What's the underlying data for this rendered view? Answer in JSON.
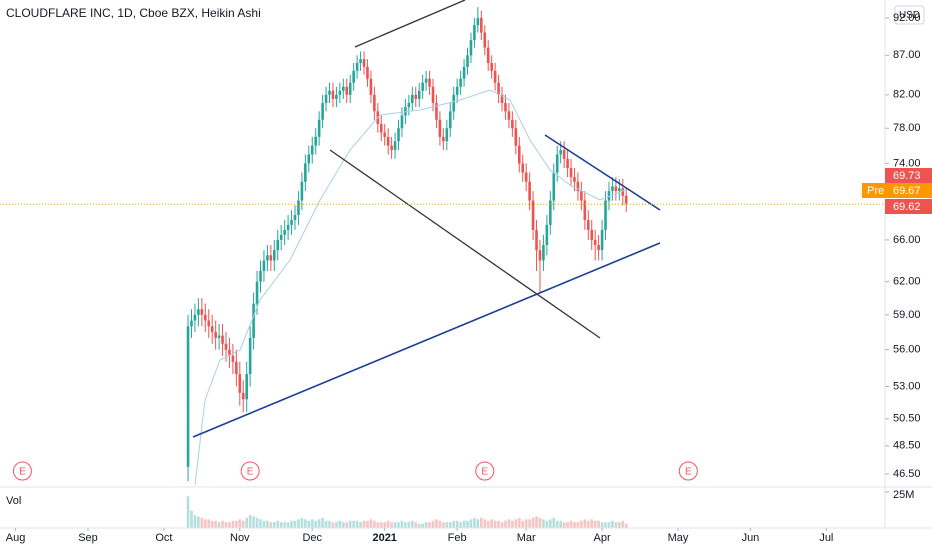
{
  "chart_data": {
    "type": "candlestick",
    "title": "CLOUDFLARE INC, 1D, Cboe BZX, Heikin Ashi",
    "currency": "USD",
    "volume_label": "Vol",
    "log_scale": true,
    "up_color": "#26a69a",
    "down_color": "#ef5350",
    "ylim": [
      45.74,
      94.5
    ],
    "yticks": [
      {
        "value": 92,
        "label": "92.00"
      },
      {
        "value": 87,
        "label": "87.00"
      },
      {
        "value": 82,
        "label": "82.00"
      },
      {
        "value": 78,
        "label": "78.00"
      },
      {
        "value": 74,
        "label": "74.00"
      },
      {
        "value": 66,
        "label": "66.00"
      },
      {
        "value": 62,
        "label": "62.00"
      },
      {
        "value": 59,
        "label": "59.00"
      },
      {
        "value": 56,
        "label": "56.00"
      },
      {
        "value": 53,
        "label": "53.00"
      },
      {
        "value": 50.5,
        "label": "50.50"
      },
      {
        "value": 48.5,
        "label": "48.50"
      },
      {
        "value": 46.5,
        "label": "46.50"
      }
    ],
    "xlim": [
      -54.5,
      202
    ],
    "xticks": [
      {
        "value": -50,
        "label": "Aug"
      },
      {
        "value": -29,
        "label": "Sep"
      },
      {
        "value": -7,
        "label": "Oct"
      },
      {
        "value": 15,
        "label": "Nov"
      },
      {
        "value": 36,
        "label": "Dec"
      },
      {
        "value": 57,
        "label": "2021"
      },
      {
        "value": 78,
        "label": "Feb"
      },
      {
        "value": 98,
        "label": "Mar"
      },
      {
        "value": 120,
        "label": "Apr"
      },
      {
        "value": 142,
        "label": "May"
      },
      {
        "value": 163,
        "label": "Jun"
      },
      {
        "value": 185,
        "label": "Jul"
      }
    ],
    "open": [
      47,
      58,
      58.5,
      59,
      59.5,
      59,
      58.5,
      58,
      57.5,
      57,
      57.2,
      56.5,
      56,
      55.5,
      55,
      54,
      52.5,
      52,
      54,
      57,
      60,
      62,
      63,
      64,
      64.5,
      64,
      65,
      66,
      66.5,
      67,
      67.5,
      68,
      68.5,
      70,
      72,
      74,
      75,
      76,
      77,
      79,
      81,
      82,
      82.5,
      81.5,
      82,
      82.5,
      83,
      82,
      83.5,
      85,
      86,
      86.5,
      85.5,
      84,
      82,
      80,
      78.5,
      77.5,
      77,
      76,
      75.5,
      76.5,
      78,
      79.5,
      80.5,
      81,
      82,
      81.5,
      82.5,
      83.5,
      84,
      83,
      81,
      79,
      77,
      76.5,
      78,
      80,
      82,
      83,
      84,
      85.5,
      87,
      89,
      91,
      92,
      90,
      88,
      86,
      85,
      83.5,
      82,
      81,
      80,
      79,
      78,
      76,
      74,
      73,
      72,
      70,
      67,
      65,
      64,
      65.5,
      67.5,
      70,
      73,
      75,
      75.5,
      74.5,
      73.5,
      72.5,
      72,
      71,
      70,
      68,
      67,
      66,
      65.5,
      65,
      67,
      70,
      71,
      71.5,
      71,
      71.3,
      70.5
    ],
    "high": [
      59,
      59.5,
      60,
      60.5,
      60.5,
      60,
      59.5,
      59,
      58.5,
      58.2,
      58.2,
      57.5,
      57,
      56.5,
      56,
      55,
      53.5,
      55,
      58,
      61,
      63,
      64,
      65,
      65.5,
      65.5,
      66,
      67,
      67.5,
      68,
      68.5,
      69,
      69.5,
      71,
      73,
      75,
      76,
      77,
      78,
      80,
      82,
      83,
      83.5,
      83.5,
      83,
      83.5,
      84,
      84,
      84.5,
      86,
      87,
      87.5,
      87.5,
      86.5,
      85,
      83,
      81,
      79.5,
      78.5,
      78,
      77,
      77.5,
      79,
      80.5,
      81.5,
      82,
      83,
      83,
      83.5,
      84.5,
      85,
      85,
      84,
      82,
      80,
      78,
      79,
      81,
      83,
      84,
      85,
      86.5,
      88,
      90,
      92,
      93.5,
      93,
      91,
      89,
      87,
      86,
      84.5,
      83,
      82,
      81,
      80,
      79,
      77,
      75,
      74,
      73,
      71,
      68,
      66,
      66.5,
      68.5,
      71,
      74,
      76,
      76.5,
      76.5,
      75.5,
      74.5,
      73.5,
      73,
      72,
      71,
      69,
      68,
      67,
      66.5,
      68,
      71,
      72,
      72.5,
      72.5,
      72.3,
      72.3,
      71.3
    ],
    "low": [
      46,
      57,
      57.5,
      58,
      58,
      57.5,
      57,
      56.5,
      56,
      56,
      55.5,
      55,
      54.5,
      54,
      53,
      51.5,
      51,
      51,
      53,
      56,
      59,
      61,
      62,
      63,
      63,
      63,
      64,
      65,
      65.5,
      66,
      66.5,
      67,
      67.5,
      69,
      71,
      73,
      74,
      75,
      76,
      78,
      80,
      81,
      80.5,
      80.5,
      81,
      81.5,
      81,
      81,
      82.5,
      84,
      85,
      84.5,
      83,
      81,
      79,
      77.5,
      76.5,
      76,
      75,
      74.5,
      74.5,
      75.5,
      77,
      78.5,
      79.5,
      80,
      80.5,
      80.5,
      81.5,
      82.5,
      82,
      80,
      78,
      76,
      75.5,
      75.5,
      77,
      79,
      81,
      82,
      83,
      84.5,
      86,
      88,
      90,
      89,
      87,
      85,
      84,
      82.5,
      81,
      80,
      79,
      78,
      77,
      75,
      73,
      72,
      71,
      69,
      66,
      63,
      61,
      63,
      64.5,
      66.5,
      69,
      72,
      74,
      73.5,
      72.5,
      71.5,
      71,
      70,
      69,
      67,
      66,
      65,
      64,
      64,
      64,
      66,
      69,
      70,
      70,
      70,
      69.5,
      68.8
    ],
    "close": [
      58,
      58.5,
      59,
      59.5,
      59,
      58.5,
      58,
      57.5,
      57,
      57.2,
      56.5,
      56,
      55.5,
      55,
      54,
      52.5,
      52,
      54,
      57,
      60,
      62,
      63,
      64,
      64.5,
      64,
      65,
      66,
      66.5,
      67,
      67.5,
      68,
      68.5,
      70,
      72,
      74,
      75,
      76,
      77,
      79,
      81,
      82,
      82.5,
      81.5,
      82,
      82.5,
      83,
      82,
      83.5,
      85,
      86,
      86.5,
      85.5,
      84,
      82,
      80,
      78.5,
      77.5,
      77,
      76,
      75.5,
      76.5,
      78,
      79.5,
      80.5,
      81,
      82,
      81.5,
      82.5,
      83.5,
      84,
      83,
      81,
      79,
      77,
      76.5,
      78,
      80,
      82,
      83,
      84,
      85.5,
      87,
      89,
      91,
      92,
      90,
      88,
      86,
      85,
      83.5,
      82,
      81,
      80,
      79,
      78,
      76,
      74,
      73,
      72,
      70,
      67,
      65,
      64,
      65.5,
      67.5,
      70,
      73,
      75,
      75.5,
      74.5,
      73.5,
      72.5,
      72,
      71,
      70,
      68,
      67,
      66,
      65.5,
      65,
      67,
      70,
      71,
      71.5,
      71,
      71.3,
      70.5,
      69.7
    ],
    "volume": [
      22,
      12,
      9,
      8,
      7,
      6,
      6,
      5,
      5,
      4,
      5,
      4,
      4,
      5,
      5,
      6,
      5,
      7,
      9,
      8,
      7,
      6,
      5,
      5,
      4,
      4,
      5,
      4,
      4,
      4,
      5,
      5,
      6,
      7,
      6,
      5,
      6,
      5,
      6,
      7,
      5,
      5,
      4,
      4,
      5,
      4,
      4,
      5,
      5,
      5,
      4,
      5,
      5,
      6,
      5,
      4,
      4,
      4,
      5,
      4,
      4,
      4,
      5,
      4,
      4,
      5,
      4,
      3,
      3,
      4,
      4,
      5,
      6,
      5,
      4,
      4,
      4,
      5,
      5,
      4,
      5,
      5,
      6,
      7,
      6,
      7,
      6,
      5,
      6,
      5,
      5,
      4,
      5,
      6,
      5,
      6,
      7,
      5,
      6,
      6,
      7,
      8,
      7,
      6,
      5,
      6,
      7,
      5,
      5,
      4,
      4,
      5,
      4,
      4,
      5,
      6,
      5,
      6,
      5,
      5,
      4,
      4,
      4,
      5,
      4,
      4,
      5,
      3
    ],
    "volume_lim": [
      0,
      27
    ],
    "volume_ticks": [
      {
        "value": 25,
        "label": "25M"
      }
    ],
    "earnings": {
      "label": "E",
      "x": [
        -48,
        18,
        86,
        145
      ]
    },
    "price_labels": {
      "high": 69.73,
      "pre_tag": "Pre",
      "pre": 69.67,
      "close": 69.62,
      "pre_color": "#ff9800"
    }
  }
}
